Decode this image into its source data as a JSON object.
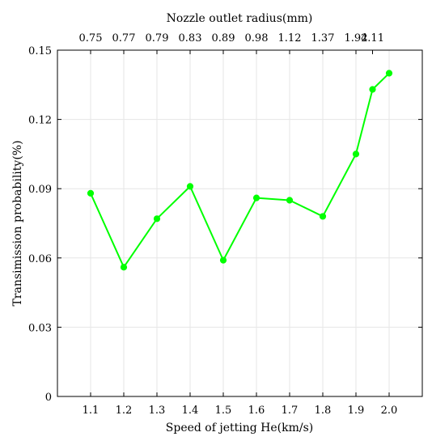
{
  "chart_data": {
    "type": "line",
    "title": "",
    "xlabel": "Speed of jetting He(km/s)",
    "ylabel": "Transimission probability(%)",
    "top_xlabel": "Nozzle outlet radius(mm)",
    "x_ticks": [
      "1.1",
      "1.2",
      "1.3",
      "1.4",
      "1.5",
      "1.6",
      "1.7",
      "1.8",
      "1.9",
      "2.0"
    ],
    "x_tick_values": [
      1.1,
      1.2,
      1.3,
      1.4,
      1.5,
      1.6,
      1.7,
      1.8,
      1.9,
      2.0
    ],
    "top_x_ticks": [
      "0.75",
      "0.77",
      "0.79",
      "0.83",
      "0.89",
      "0.98",
      "1.12",
      "1.37",
      "1.92",
      "4.11"
    ],
    "top_x_tick_values": [
      1.1,
      1.2,
      1.3,
      1.4,
      1.5,
      1.6,
      1.7,
      1.8,
      1.9,
      1.95
    ],
    "y_ticks": [
      "0",
      "0.03",
      "0.06",
      "0.09",
      "0.12",
      "0.15"
    ],
    "y_tick_values": [
      0,
      0.03,
      0.06,
      0.09,
      0.12,
      0.15
    ],
    "xlim": [
      1.0,
      2.1
    ],
    "ylim": [
      0,
      0.15
    ],
    "grid": true,
    "legend": "none",
    "series": [
      {
        "color": "#00ff00",
        "x": [
          1.1,
          1.2,
          1.3,
          1.4,
          1.5,
          1.6,
          1.7,
          1.8,
          1.9,
          1.95,
          2.0
        ],
        "values": [
          0.088,
          0.056,
          0.077,
          0.091,
          0.059,
          0.086,
          0.085,
          0.078,
          0.105,
          0.133,
          0.14
        ]
      }
    ]
  }
}
